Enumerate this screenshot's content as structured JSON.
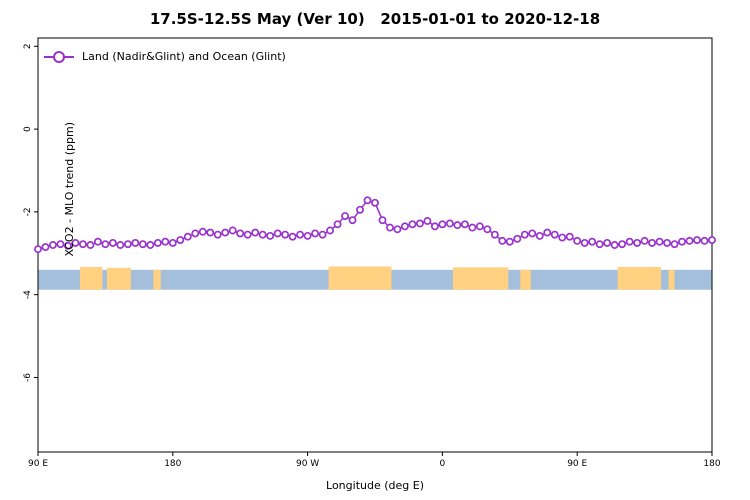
{
  "title": "17.5S-12.5S May (Ver 10)   2015-01-01 to 2020-12-18",
  "legend": {
    "label": "Land (Nadir&Glint) and Ocean (Glint)"
  },
  "colors": {
    "series": "#9932cc",
    "marker_fill": "#ffffff",
    "ocean_band": "#a3bfdb",
    "land_patch": "#ffd180",
    "axis": "#000000"
  },
  "chart_data": {
    "type": "line",
    "title": "17.5S-12.5S May (Ver 10)   2015-01-01 to 2020-12-18",
    "xlabel": "Longitude (deg E)",
    "ylabel": "XCO2 - MLO trend (ppm)",
    "xlim": [
      90,
      540
    ],
    "ylim": [
      -7.8,
      2.2
    ],
    "grid": false,
    "legend_position": "top-left",
    "xticks": [
      {
        "value": 90,
        "label": "90 E"
      },
      {
        "value": 180,
        "label": "180"
      },
      {
        "value": 270,
        "label": "90 W"
      },
      {
        "value": 360,
        "label": "0"
      },
      {
        "value": 450,
        "label": "90 E"
      },
      {
        "value": 540,
        "label": "180"
      }
    ],
    "yticks": [
      {
        "value": 2,
        "label": "2"
      },
      {
        "value": 0,
        "label": "0"
      },
      {
        "value": -2,
        "label": "-2"
      },
      {
        "value": -4,
        "label": "-4"
      },
      {
        "value": -6,
        "label": "-6"
      }
    ],
    "ocean_band": {
      "x0": 90,
      "x1": 540,
      "y0": -3.88,
      "y1": -3.4
    },
    "land_patches": [
      {
        "x0": 118,
        "x1": 133,
        "y0": -3.88,
        "y1": -3.33
      },
      {
        "x0": 136,
        "x1": 152,
        "y0": -3.88,
        "y1": -3.35
      },
      {
        "x0": 167,
        "x1": 172,
        "y0": -3.88,
        "y1": -3.4
      },
      {
        "x0": 284,
        "x1": 326,
        "y0": -3.88,
        "y1": -3.32
      },
      {
        "x0": 367,
        "x1": 404,
        "y0": -3.88,
        "y1": -3.34
      },
      {
        "x0": 412,
        "x1": 419,
        "y0": -3.88,
        "y1": -3.4
      },
      {
        "x0": 477,
        "x1": 506,
        "y0": -3.88,
        "y1": -3.33
      },
      {
        "x0": 511,
        "x1": 515,
        "y0": -3.88,
        "y1": -3.4
      }
    ],
    "series": [
      {
        "name": "Land (Nadir&Glint) and Ocean (Glint)",
        "marker": "open-circle",
        "x": [
          90,
          95,
          100,
          105,
          110,
          115,
          120,
          125,
          130,
          135,
          140,
          145,
          150,
          155,
          160,
          165,
          170,
          175,
          180,
          185,
          190,
          195,
          200,
          205,
          210,
          215,
          220,
          225,
          230,
          235,
          240,
          245,
          250,
          255,
          260,
          265,
          270,
          275,
          280,
          285,
          290,
          295,
          300,
          305,
          310,
          315,
          320,
          325,
          330,
          335,
          340,
          345,
          350,
          355,
          360,
          365,
          370,
          375,
          380,
          385,
          390,
          395,
          400,
          405,
          410,
          415,
          420,
          425,
          430,
          435,
          440,
          445,
          450,
          455,
          460,
          465,
          470,
          475,
          480,
          485,
          490,
          495,
          500,
          505,
          510,
          515,
          520,
          525,
          530,
          535,
          540
        ],
        "y": [
          -2.9,
          -2.85,
          -2.8,
          -2.78,
          -2.82,
          -2.75,
          -2.78,
          -2.8,
          -2.72,
          -2.78,
          -2.75,
          -2.8,
          -2.78,
          -2.75,
          -2.78,
          -2.8,
          -2.75,
          -2.72,
          -2.75,
          -2.68,
          -2.6,
          -2.52,
          -2.48,
          -2.5,
          -2.55,
          -2.5,
          -2.45,
          -2.52,
          -2.55,
          -2.5,
          -2.55,
          -2.58,
          -2.52,
          -2.55,
          -2.6,
          -2.55,
          -2.58,
          -2.52,
          -2.55,
          -2.45,
          -2.3,
          -2.1,
          -2.2,
          -1.95,
          -1.72,
          -1.78,
          -2.2,
          -2.38,
          -2.42,
          -2.35,
          -2.3,
          -2.28,
          -2.22,
          -2.35,
          -2.3,
          -2.28,
          -2.32,
          -2.3,
          -2.38,
          -2.35,
          -2.42,
          -2.55,
          -2.7,
          -2.72,
          -2.65,
          -2.55,
          -2.52,
          -2.58,
          -2.5,
          -2.55,
          -2.62,
          -2.6,
          -2.7,
          -2.75,
          -2.72,
          -2.78,
          -2.75,
          -2.8,
          -2.78,
          -2.72,
          -2.75,
          -2.7,
          -2.75,
          -2.72,
          -2.75,
          -2.78,
          -2.72,
          -2.7,
          -2.68,
          -2.7,
          -2.68
        ]
      }
    ]
  }
}
